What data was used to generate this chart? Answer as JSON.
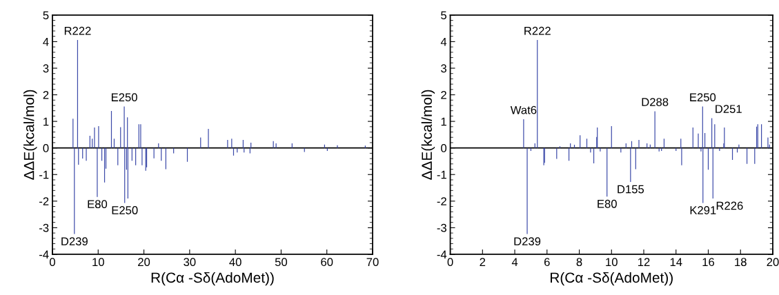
{
  "chart_data": [
    {
      "type": "bar",
      "xlabel": "R(Cα -Sδ(AdoMet))",
      "ylabel": "ΔΔE(kcal/mol)",
      "xlim": [
        0,
        70
      ],
      "ylim": [
        -4,
        5
      ],
      "xticks": [
        0,
        10,
        20,
        30,
        40,
        50,
        60,
        70
      ],
      "yticks": [
        -4,
        -3,
        -2,
        -1,
        0,
        1,
        2,
        3,
        4,
        5
      ],
      "grid": false,
      "x": [
        4.5,
        4.8,
        5.5,
        5.7,
        6.6,
        7.4,
        8.2,
        8.7,
        9.2,
        9.8,
        10.1,
        10.8,
        11.4,
        11.7,
        12.9,
        13.5,
        14.3,
        14.9,
        15.7,
        15.8,
        16.2,
        16.4,
        16.5,
        17.4,
        18.2,
        18.9,
        19.3,
        19.6,
        20.4,
        20.6,
        22.2,
        23.2,
        23.8,
        24.8,
        26.5,
        29.5,
        32.4,
        34.1,
        38.3,
        39.2,
        39.6,
        40.4,
        41.7,
        41.9,
        43.2,
        43.4,
        48.3,
        48.9,
        52.4,
        55.1,
        59.5,
        60.1,
        62.3,
        68.4
      ],
      "values": [
        1.1,
        -3.24,
        4.06,
        -0.63,
        -0.4,
        -0.48,
        0.46,
        0.35,
        0.77,
        -1.84,
        0.82,
        -0.48,
        -1.3,
        -0.78,
        1.39,
        0.35,
        -0.65,
        0.78,
        1.56,
        -2.07,
        -0.82,
        1.15,
        -1.9,
        -0.48,
        -0.65,
        0.89,
        0.89,
        -0.65,
        -0.86,
        -0.73,
        -0.39,
        0.17,
        -0.48,
        -0.8,
        -0.2,
        -0.52,
        0.39,
        0.72,
        0.3,
        0.35,
        -0.29,
        -0.17,
        0.3,
        -0.17,
        -0.2,
        0.2,
        0.26,
        0.17,
        0.17,
        -0.15,
        0.13,
        -0.11,
        0.1,
        0.09
      ],
      "color": "#3a48a8",
      "ref_lines": [
        {
          "axis": "y",
          "value": 0,
          "color": "#000000"
        }
      ],
      "annotations": [
        {
          "text": "R222",
          "x": 5.5,
          "y": 4.06
        },
        {
          "text": "D239",
          "x": 4.8,
          "y": -3.24
        },
        {
          "text": "E80",
          "x": 9.8,
          "y": -1.84
        },
        {
          "text": "E250",
          "x": 15.7,
          "y": 1.56
        },
        {
          "text": "E250",
          "x": 15.8,
          "y": -2.07
        }
      ]
    },
    {
      "type": "bar",
      "xlabel": "R(Cα -Sδ(AdoMet))",
      "ylabel": "ΔΔE(kcal/mol)",
      "xlim": [
        0,
        20
      ],
      "ylim": [
        -4,
        5
      ],
      "xticks": [
        0,
        2,
        4,
        6,
        8,
        10,
        12,
        14,
        16,
        18,
        20
      ],
      "yticks": [
        -4,
        -3,
        -2,
        -1,
        0,
        1,
        2,
        3,
        4,
        5
      ],
      "grid": false,
      "x": [
        4.55,
        4.77,
        5.0,
        5.25,
        5.4,
        5.8,
        5.85,
        6.6,
        6.8,
        7.36,
        7.45,
        7.7,
        8.05,
        8.47,
        8.7,
        8.9,
        9.08,
        9.12,
        9.3,
        9.72,
        10.0,
        10.58,
        10.9,
        11.18,
        11.25,
        11.5,
        11.7,
        12.2,
        12.4,
        12.69,
        12.95,
        13.1,
        13.26,
        14.0,
        14.3,
        14.35,
        15.05,
        15.38,
        15.55,
        15.65,
        15.67,
        15.79,
        16.0,
        16.22,
        16.29,
        16.4,
        16.7,
        16.96,
        17.0,
        17.5,
        17.8,
        17.9,
        18.4,
        18.88,
        19.0,
        19.07,
        19.3,
        19.7,
        19.8
      ],
      "values": [
        1.08,
        -3.24,
        -0.11,
        0.17,
        4.06,
        -0.65,
        -0.56,
        -0.41,
        0.06,
        -0.48,
        0.17,
        0.12,
        0.48,
        0.35,
        -0.17,
        -0.58,
        0.41,
        0.77,
        -0.13,
        -1.83,
        0.82,
        -0.17,
        0.17,
        -1.28,
        0.26,
        -0.8,
        0.3,
        0.17,
        0.13,
        1.38,
        -0.13,
        -0.11,
        0.35,
        -0.11,
        0.35,
        -0.65,
        0.77,
        0.54,
        -0.13,
        1.56,
        -2.07,
        0.56,
        -0.82,
        1.12,
        -1.9,
        0.89,
        -0.11,
        0.17,
        0.77,
        -0.45,
        -0.17,
        0.13,
        -0.6,
        -0.6,
        0.8,
        0.89,
        0.89,
        0.39,
        0.13
      ],
      "color": "#3a48a8",
      "ref_lines": [
        {
          "axis": "y",
          "value": 0,
          "color": "#000000"
        }
      ],
      "annotations": [
        {
          "text": "Wat6",
          "x": 4.55,
          "y": 1.08
        },
        {
          "text": "R222",
          "x": 5.4,
          "y": 4.06
        },
        {
          "text": "D239",
          "x": 4.77,
          "y": -3.24
        },
        {
          "text": "E80",
          "x": 9.72,
          "y": -1.83
        },
        {
          "text": "D155",
          "x": 11.18,
          "y": -1.28
        },
        {
          "text": "D288",
          "x": 12.69,
          "y": 1.38
        },
        {
          "text": "E250",
          "x": 15.65,
          "y": 1.56
        },
        {
          "text": "D251",
          "x": 16.22,
          "y": 1.12
        },
        {
          "text": "K291",
          "x": 15.67,
          "y": -2.07
        },
        {
          "text": "R226",
          "x": 16.29,
          "y": -1.9
        }
      ]
    }
  ]
}
